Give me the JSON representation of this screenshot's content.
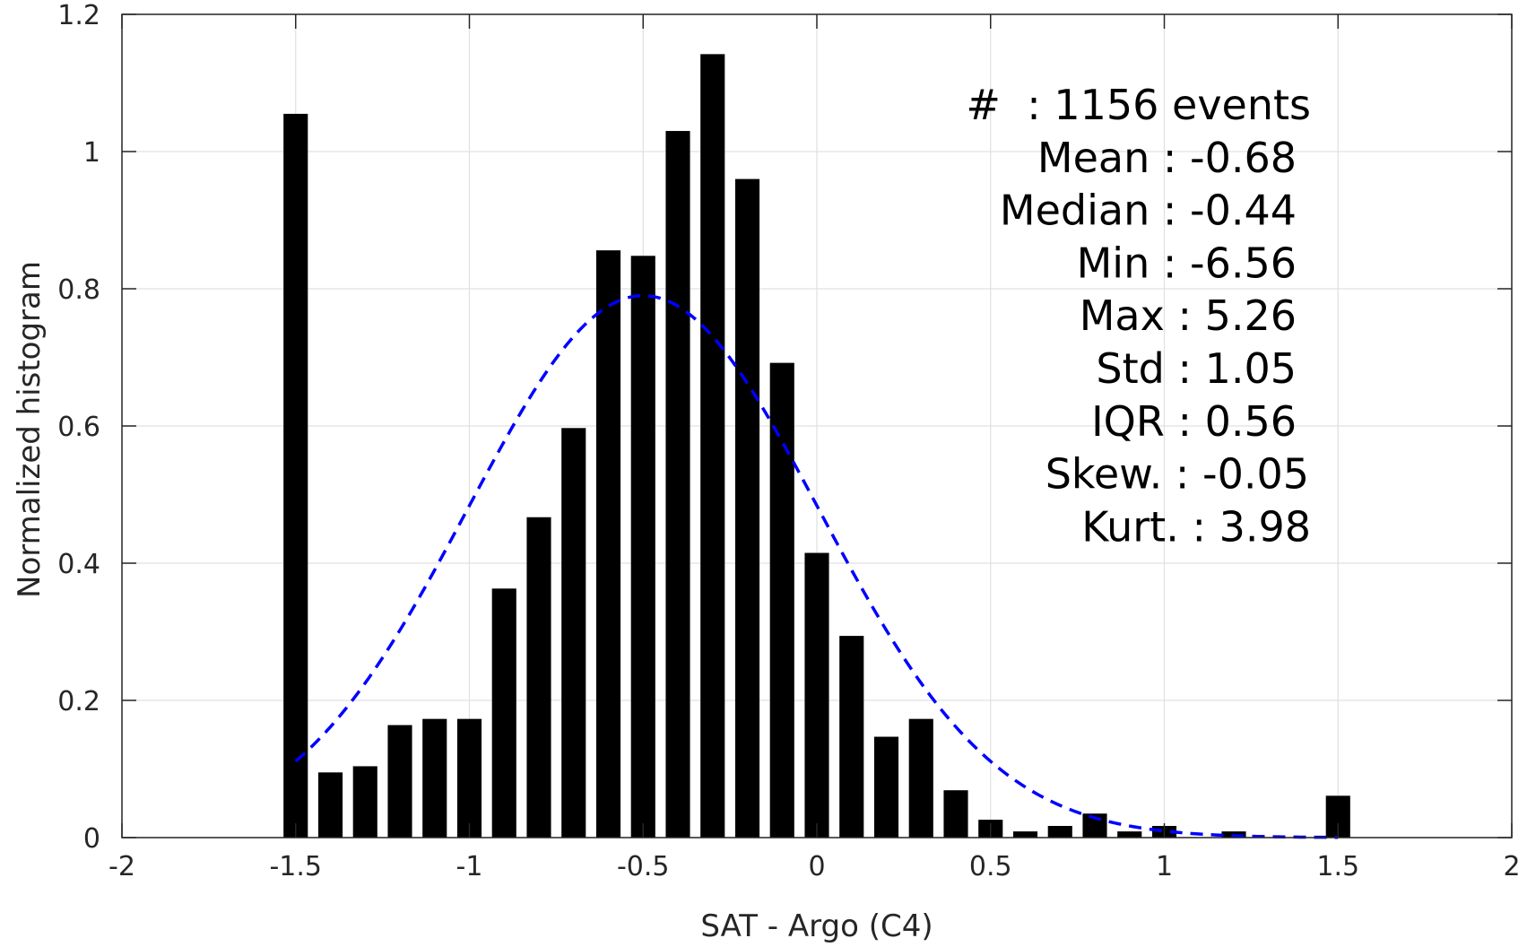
{
  "chart_data": {
    "type": "bar",
    "xlabel": "SAT - Argo (C4)",
    "ylabel": "Normalized histogram",
    "xlim": [
      -2,
      2
    ],
    "ylim": [
      0,
      1.2
    ],
    "grid": true,
    "x_ticks": [
      -2,
      -1.5,
      -1,
      -0.5,
      0,
      0.5,
      1,
      1.5,
      2
    ],
    "x_tick_labels": [
      "-2",
      "-1.5",
      "-1",
      "-0.5",
      "0",
      "0.5",
      "1",
      "1.5",
      "2"
    ],
    "y_ticks": [
      0,
      0.2,
      0.4,
      0.6,
      0.8,
      1.0,
      1.2
    ],
    "y_tick_labels": [
      "0",
      "0.2",
      "0.4",
      "0.6",
      "0.8",
      "1",
      "1.2"
    ],
    "bar_width": 0.07,
    "bar_color": "#000000",
    "x": [
      -1.5,
      -1.4,
      -1.3,
      -1.2,
      -1.1,
      -1.0,
      -0.9,
      -0.8,
      -0.7,
      -0.6,
      -0.5,
      -0.4,
      -0.3,
      -0.2,
      -0.1,
      0.0,
      0.1,
      0.2,
      0.3,
      0.4,
      0.5,
      0.6,
      0.7,
      0.8,
      0.9,
      1.0,
      1.1,
      1.2,
      1.3,
      1.4,
      1.5
    ],
    "values": [
      1.055,
      0.095,
      0.104,
      0.164,
      0.173,
      0.173,
      0.363,
      0.467,
      0.597,
      0.856,
      0.848,
      1.03,
      1.142,
      0.96,
      0.692,
      0.415,
      0.294,
      0.147,
      0.173,
      0.069,
      0.026,
      0.009,
      0.017,
      0.035,
      0.009,
      0.017,
      0.0,
      0.009,
      0.0,
      0.0,
      0.061
    ],
    "fit": {
      "style": "dashed",
      "color": "#0000ff",
      "x_range": [
        -1.5,
        1.5
      ],
      "peak_x": -0.5,
      "peak_y": 0.79
    },
    "stats": [
      {
        "label": "#  ",
        "value": ": 1156 events"
      },
      {
        "label": "Mean",
        "value": " : -0.68"
      },
      {
        "label": "Median",
        "value": " : -0.44"
      },
      {
        "label": "Min",
        "value": " : -6.56"
      },
      {
        "label": "Max",
        "value": " : 5.26"
      },
      {
        "label": "Std",
        "value": " : 1.05"
      },
      {
        "label": "IQR",
        "value": " : 0.56"
      },
      {
        "label": "Skew.",
        "value": " : -0.05"
      },
      {
        "label": "Kurt.",
        "value": " : 3.98"
      }
    ]
  }
}
